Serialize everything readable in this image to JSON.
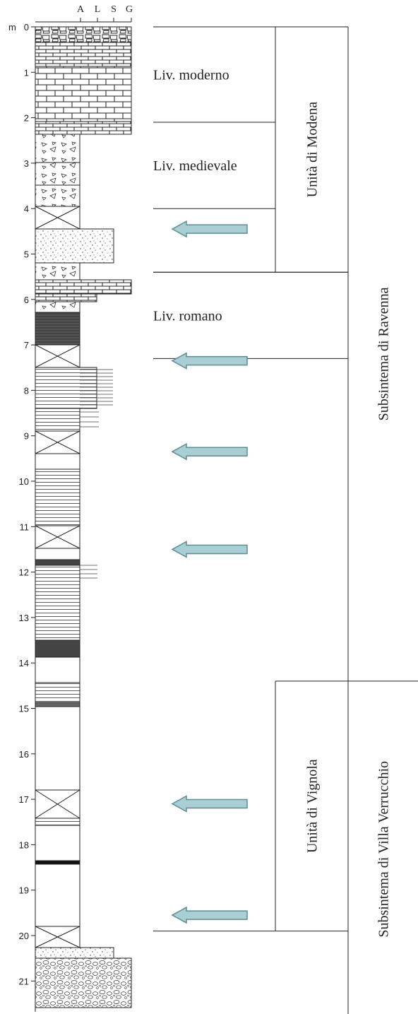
{
  "depth_axis": {
    "unit_prefix": "m",
    "ticks": [
      "0",
      "1",
      "2",
      "3",
      "4",
      "5",
      "6",
      "7",
      "8",
      "9",
      "10",
      "11",
      "12",
      "13",
      "14",
      "15",
      "16",
      "17",
      "18",
      "19",
      "20",
      "21"
    ]
  },
  "grain_scale": {
    "labels": [
      "A",
      "L",
      "S",
      "G"
    ]
  },
  "levels": [
    {
      "id": "moderno",
      "label": "Liv. moderno",
      "top_m": 0,
      "bottom_m": 2.1
    },
    {
      "id": "medievale",
      "label": "Liv. medievale",
      "top_m": 2.1,
      "bottom_m": 4.0
    },
    {
      "id": "romano",
      "label": "Liv. romano",
      "top_m": 5.4,
      "bottom_m": 7.3
    }
  ],
  "units": [
    {
      "id": "modena",
      "label": "Unità di Modena",
      "top_m": 0,
      "bottom_m": 5.4
    },
    {
      "id": "vignola",
      "label": "Unità di Vignola",
      "top_m": 14.4,
      "bottom_m": 19.9
    }
  ],
  "subsystems": [
    {
      "id": "ravenna",
      "label": "Subsintema di Ravenna",
      "top_m": 0,
      "bottom_m": 14.4
    },
    {
      "id": "villa-verrucchio",
      "label": "Subsintema di Villa Verrucchio",
      "top_m": 14.4,
      "bottom_m": 21.8
    }
  ],
  "arrows_depth_m": [
    4.45,
    7.35,
    9.35,
    11.5,
    17.1,
    19.55
  ],
  "colors": {
    "arrow_fill": "#a9cfd4",
    "arrow_stroke": "#5e8d94",
    "line": "#222222",
    "dark_layer": "#4a4a4a"
  }
}
